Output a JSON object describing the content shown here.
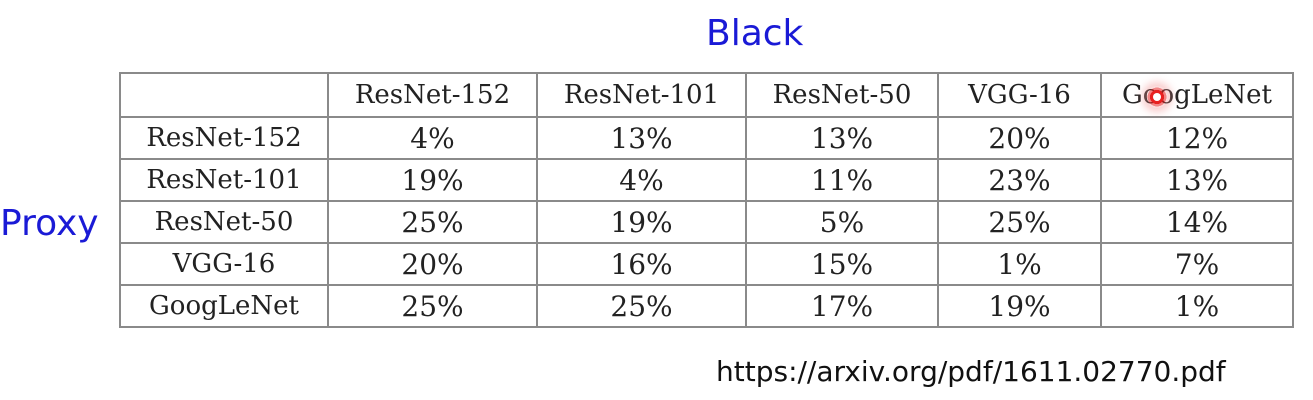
{
  "heading": "Black",
  "side_label": "Proxy",
  "source_url": "https://arxiv.org/pdf/1611.02770.pdf",
  "table": {
    "columns": [
      "",
      "ResNet-152",
      "ResNet-101",
      "ResNet-50",
      "VGG-16",
      "GoogLeNet"
    ],
    "rows": [
      {
        "label": "ResNet-152",
        "values": [
          "4%",
          "13%",
          "13%",
          "20%",
          "12%"
        ]
      },
      {
        "label": "ResNet-101",
        "values": [
          "19%",
          "4%",
          "11%",
          "23%",
          "13%"
        ]
      },
      {
        "label": "ResNet-50",
        "values": [
          "25%",
          "19%",
          "5%",
          "25%",
          "14%"
        ]
      },
      {
        "label": "VGG-16",
        "values": [
          "20%",
          "16%",
          "15%",
          "1%",
          "7%"
        ]
      },
      {
        "label": "GoogLeNet",
        "values": [
          "25%",
          "25%",
          "17%",
          "19%",
          "1%"
        ]
      }
    ]
  },
  "colors": {
    "label_blue": "#1a1ad6",
    "cursor_red": "#e82020"
  },
  "icons": {
    "pointer": "cursor-highlight"
  }
}
